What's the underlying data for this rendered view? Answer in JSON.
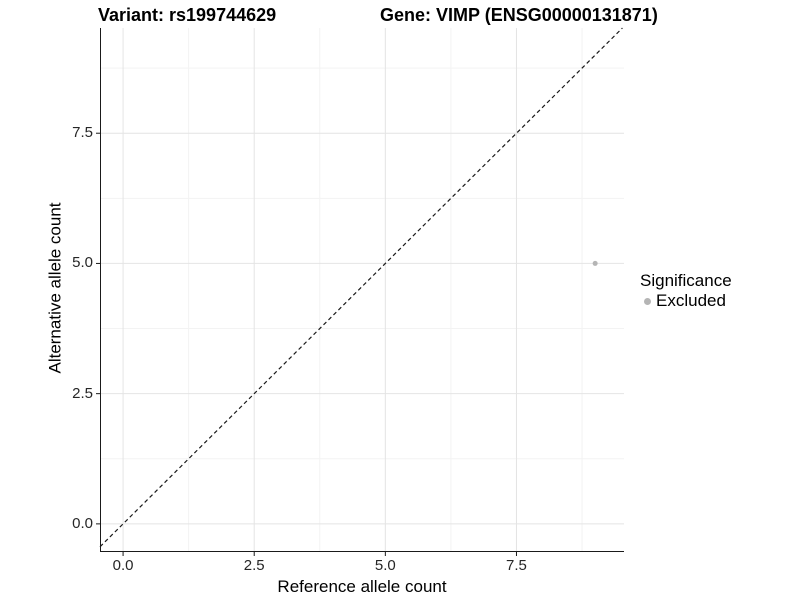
{
  "title": {
    "variant": "Variant: rs199744629",
    "gene": "Gene: VIMP (ENSG00000131871)"
  },
  "x_axis": {
    "label": "Reference allele count",
    "ticks": [
      {
        "value": 0,
        "label": "0.0"
      },
      {
        "value": 2.5,
        "label": "2.5"
      },
      {
        "value": 5,
        "label": "5.0"
      },
      {
        "value": 7.5,
        "label": "7.5"
      }
    ],
    "minor": [
      1.25,
      3.75,
      6.25,
      8.75
    ]
  },
  "y_axis": {
    "label": "Alternative allele count",
    "ticks": [
      {
        "value": 0,
        "label": "0.0"
      },
      {
        "value": 2.5,
        "label": "2.5"
      },
      {
        "value": 5,
        "label": "5.0"
      },
      {
        "value": 7.5,
        "label": "7.5"
      }
    ],
    "minor": [
      1.25,
      3.75,
      6.25,
      8.75
    ]
  },
  "legend": {
    "title": "Significance",
    "items": [
      {
        "label": "Excluded",
        "color": "#b5b5b5"
      }
    ]
  },
  "chart_data": {
    "type": "scatter",
    "title": "Variant: rs199744629   Gene: VIMP (ENSG00000131871)",
    "xlabel": "Reference allele count",
    "ylabel": "Alternative allele count",
    "xlim": [
      -0.44,
      9.55
    ],
    "ylim": [
      -0.54,
      9.52
    ],
    "x_ticks": [
      0,
      2.5,
      5,
      7.5
    ],
    "y_ticks": [
      0,
      2.5,
      5,
      7.5
    ],
    "grid": "white background, light gray major and minor gridlines",
    "legend_position": "right",
    "series": [
      {
        "name": "Excluded",
        "color": "#b5b5b5",
        "point_radius": 2.5,
        "points": [
          {
            "x": 9,
            "y": 5
          }
        ]
      }
    ],
    "reference_line": {
      "slope": 1,
      "intercept": 0,
      "style": "dashed",
      "color": "#1a1a1a"
    }
  },
  "colors": {
    "background": "#ffffff",
    "grid_major": "#e4e4e4",
    "grid_minor": "#f3f3f3",
    "axis_line": "#1a1a1a",
    "reference_line": "#1a1a1a",
    "point": "#b5b5b5",
    "tick_text": "#262626",
    "text": "#000000"
  }
}
